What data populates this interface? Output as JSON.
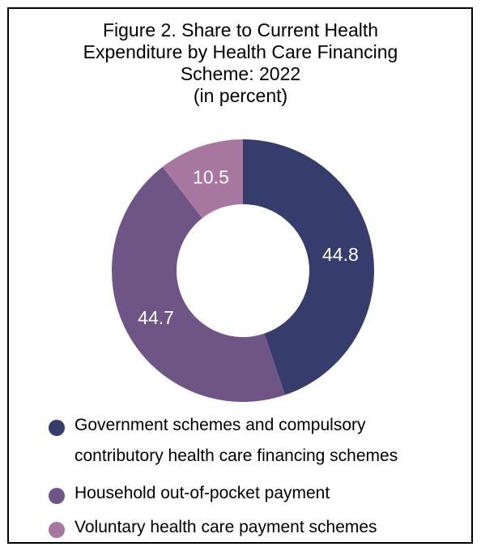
{
  "chart_data": {
    "type": "pie",
    "title_lines": [
      "Figure 2. Share to Current Health",
      "Expenditure by Health Care Financing",
      "Scheme: 2022",
      "(in percent)"
    ],
    "categories": [
      "Government schemes and compulsory contributory health care financing schemes",
      "Household out-of-pocket payment",
      "Voluntary health care payment schemes"
    ],
    "values": [
      44.8,
      44.7,
      10.5
    ],
    "value_labels": [
      "44.8",
      "44.7",
      "10.5"
    ],
    "colors": [
      "#363c6b",
      "#6f5586",
      "#a8779f"
    ],
    "legend": {
      "placement": "bottom",
      "items": [
        {
          "lines": [
            "Government schemes and compulsory",
            "contributory health care financing schemes"
          ]
        },
        {
          "lines": [
            "Household out-of-pocket payment"
          ]
        },
        {
          "lines": [
            "Voluntary health care payment schemes"
          ]
        }
      ]
    },
    "style": "donut"
  }
}
